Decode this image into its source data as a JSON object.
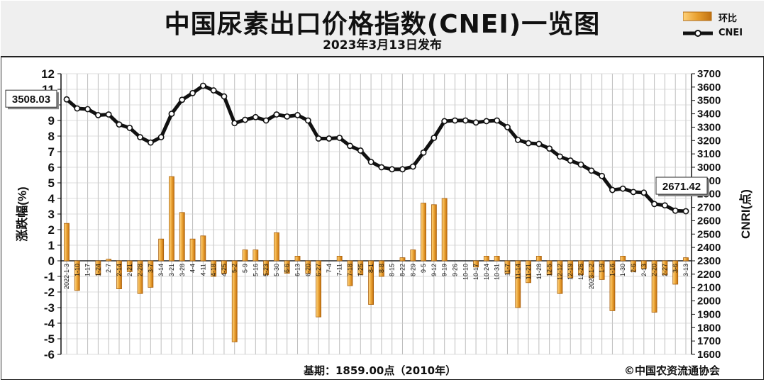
{
  "header": {
    "title": "中国尿素出口价格指数(CNEI)一览图",
    "subtitle": "2023年3月13日发布"
  },
  "legend": {
    "bar_label": "环比",
    "line_label": "CNEI"
  },
  "footer": {
    "base": "基期：1859.00点（2010年）",
    "copyright": "©中国农资流通协会"
  },
  "colors": {
    "bar_fill": "#e8a030",
    "bar_stroke": "#c07010",
    "line": "#111111",
    "marker_fill": "#ffffff"
  },
  "chart_data": {
    "type": "bar+line",
    "categories": [
      "2022-1-3",
      "1-10",
      "1-17",
      "1-24",
      "2-7",
      "2-14",
      "2-21",
      "2-28",
      "3-7",
      "3-14",
      "3-21",
      "3-28",
      "4-4",
      "4-11",
      "4-18",
      "4-25",
      "5-2",
      "5-9",
      "5-16",
      "5-23",
      "5-30",
      "6-6",
      "6-13",
      "6-20",
      "6-27",
      "7-4",
      "7-11",
      "7-18",
      "7-25",
      "8-1",
      "8-8",
      "8-15",
      "8-22",
      "8-29",
      "9-5",
      "9-12",
      "9-19",
      "9-26",
      "10-10",
      "10-17",
      "10-24",
      "10-31",
      "11-7",
      "11-14",
      "11-21",
      "11-28",
      "12-5",
      "12-12",
      "12-19",
      "12-26",
      "2023-1-2",
      "1-9",
      "1-16",
      "1-30",
      "2-6",
      "2-13",
      "2-20",
      "2-27",
      "3-6",
      "3-13"
    ],
    "series": [
      {
        "name": "环比",
        "axis": "left",
        "values": [
          2.4,
          -1.9,
          0,
          -0.9,
          0.1,
          -1.8,
          -0.7,
          -2.1,
          -1.7,
          1.4,
          5.4,
          3.1,
          1.4,
          1.6,
          -1.0,
          -0.8,
          -5.2,
          0.7,
          0.7,
          -0.9,
          1.8,
          -0.8,
          0.3,
          -0.8,
          -3.6,
          0,
          0.3,
          -1.6,
          -0.9,
          -2.8,
          -1.0,
          0,
          0.2,
          0.7,
          3.7,
          3.6,
          4.0,
          0,
          0,
          -0.4,
          0.3,
          0.3,
          -0.8,
          -3.0,
          -1.4,
          0.3,
          -0.9,
          -2.1,
          -1.1,
          -0.9,
          -1.1,
          -1.2,
          -3.2,
          0.3,
          -0.7,
          -0.5,
          -3.3,
          -0.9,
          -1.5,
          0.2
        ]
      },
      {
        "name": "CNEI",
        "axis": "right",
        "values": [
          3508,
          3440,
          3435,
          3390,
          3395,
          3320,
          3295,
          3225,
          3185,
          3225,
          3400,
          3505,
          3555,
          3610,
          3575,
          3530,
          3330,
          3355,
          3375,
          3350,
          3395,
          3380,
          3390,
          3350,
          3215,
          3215,
          3220,
          3160,
          3125,
          3040,
          3000,
          2985,
          2985,
          3005,
          3110,
          3220,
          3345,
          3350,
          3350,
          3335,
          3345,
          3350,
          3300,
          3205,
          3180,
          3175,
          3140,
          3080,
          3050,
          3020,
          2975,
          2935,
          2830,
          2840,
          2815,
          2810,
          2725,
          2715,
          2675,
          2671
        ]
      }
    ],
    "ylabel": "涨跌幅(%)",
    "y2label": "CNRI(点)",
    "ylim": [
      -6,
      12
    ],
    "y2lim": [
      1600,
      3700
    ],
    "yticks": [
      12,
      11,
      10,
      9,
      8,
      7,
      6,
      5,
      4,
      3,
      2,
      1,
      0,
      -1,
      -2,
      -3,
      -4,
      -5,
      -6
    ],
    "y2ticks": [
      3700,
      3600,
      3500,
      3400,
      3300,
      3200,
      3100,
      3000,
      2900,
      2800,
      2700,
      2600,
      2500,
      2400,
      2300,
      2200,
      2100,
      2000,
      1900,
      1800,
      1700,
      1600
    ],
    "annotations": [
      {
        "label": "3508.03",
        "index": 0
      },
      {
        "label": "2671.42",
        "index": 59
      }
    ],
    "grid": true
  }
}
